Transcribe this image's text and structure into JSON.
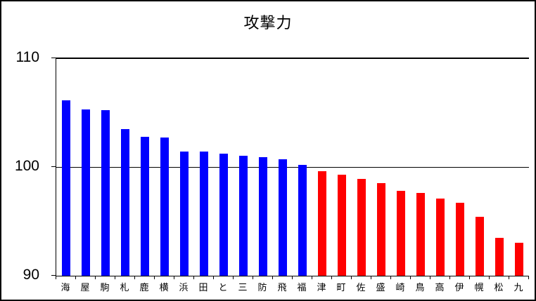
{
  "window": {
    "background_color": "#ffffff",
    "frame_border_color": "#000000"
  },
  "chart_data": {
    "type": "bar",
    "title": "攻撃力",
    "categories": [
      "海",
      "屋",
      "駒",
      "札",
      "鹿",
      "横",
      "浜",
      "田",
      "と",
      "三",
      "防",
      "飛",
      "福",
      "津",
      "町",
      "佐",
      "盛",
      "崎",
      "鳥",
      "高",
      "伊",
      "幌",
      "松",
      "九"
    ],
    "values": [
      106.1,
      105.3,
      105.2,
      103.5,
      102.8,
      102.7,
      101.4,
      101.4,
      101.2,
      101.0,
      100.9,
      100.7,
      100.2,
      99.6,
      99.3,
      98.9,
      98.5,
      97.8,
      97.6,
      97.1,
      96.7,
      95.4,
      93.5,
      93.0
    ],
    "colors": [
      "#0000ff",
      "#0000ff",
      "#0000ff",
      "#0000ff",
      "#0000ff",
      "#0000ff",
      "#0000ff",
      "#0000ff",
      "#0000ff",
      "#0000ff",
      "#0000ff",
      "#0000ff",
      "#0000ff",
      "#ff0000",
      "#ff0000",
      "#ff0000",
      "#ff0000",
      "#ff0000",
      "#ff0000",
      "#ff0000",
      "#ff0000",
      "#ff0000",
      "#ff0000",
      "#ff0000"
    ],
    "color_groups": [
      {
        "color": "#0000ff",
        "count": 13
      },
      {
        "color": "#ff0000",
        "count": 11
      }
    ],
    "xlabel": "",
    "ylabel": "",
    "ylim": [
      90,
      110
    ],
    "yticks": [
      110,
      100,
      90
    ],
    "grid": "horizontal line at 100; top frame line at 110; baseline at 90",
    "legend": "none",
    "axis_color": "#000000",
    "text_color": "#000000"
  }
}
